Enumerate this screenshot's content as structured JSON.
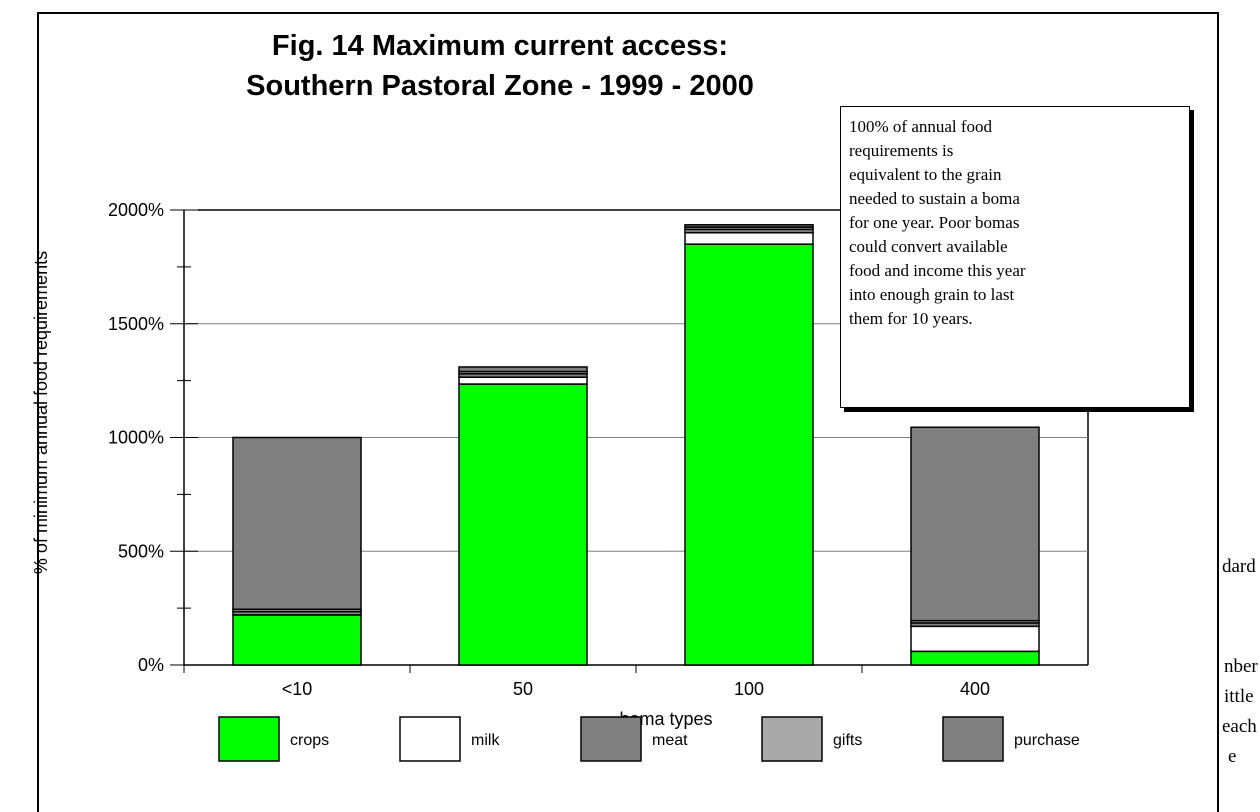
{
  "chart_data": {
    "type": "bar",
    "stacked": true,
    "title": "Fig. 14  Maximum current access:",
    "subtitle": "Southern Pastoral Zone - 1999 - 2000",
    "xlabel": "boma types",
    "ylabel": "% of minimum annual food requirements",
    "ylim": [
      0,
      2000
    ],
    "yticks": [
      "0%",
      "500%",
      "1000%",
      "1500%",
      "2000%"
    ],
    "categories": [
      "<10",
      "50",
      "100",
      "400"
    ],
    "grid": true,
    "legend_position": "bottom",
    "series": [
      {
        "name": "crops",
        "color": "#00ff00",
        "values": [
          220,
          1235,
          1850,
          60
        ]
      },
      {
        "name": "milk",
        "color": "#ffffff",
        "values": [
          0,
          30,
          50,
          110
        ]
      },
      {
        "name": "meat",
        "color": "#808080",
        "values": [
          15,
          15,
          15,
          15
        ]
      },
      {
        "name": "gifts",
        "color": "#a9a9a9",
        "values": [
          10,
          10,
          10,
          10
        ]
      },
      {
        "name": "purchase",
        "color": "#808080",
        "values": [
          755,
          20,
          10,
          850
        ]
      }
    ]
  },
  "note": {
    "lines": [
      "100% of annual food",
      "requirements is",
      "equivalent to the grain",
      "needed to sustain a boma",
      "for one year.  Poor bomas",
      "could convert available",
      "food and income this year",
      "into enough grain to last",
      "them for 10 years."
    ]
  },
  "background_text": {
    "t1": "dard",
    "t2": "nber",
    "t3": "ittle",
    "t4": "each",
    "t5": "e"
  }
}
